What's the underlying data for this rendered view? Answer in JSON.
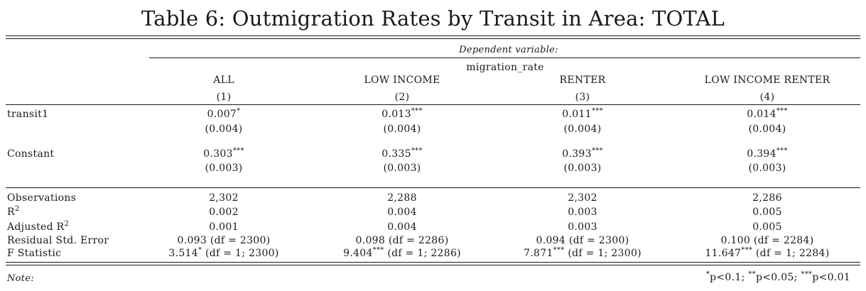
{
  "title": "Table 6: Outmigration Rates by Transit in Area: TOTAL",
  "dependent_variable_caption": "Dependent variable:",
  "dependent_variable": "migration_rate",
  "columns": [
    {
      "name": "ALL",
      "number": "(1)"
    },
    {
      "name": "LOW INCOME",
      "number": "(2)"
    },
    {
      "name": "RENTER",
      "number": "(3)"
    },
    {
      "name": "LOW INCOME RENTER",
      "number": "(4)"
    }
  ],
  "coef_rows": [
    {
      "label": "transit1",
      "cells": [
        {
          "value": "0.007",
          "stars": "*",
          "se": "(0.004)"
        },
        {
          "value": "0.013",
          "stars": "***",
          "se": "(0.004)"
        },
        {
          "value": "0.011",
          "stars": "***",
          "se": "(0.004)"
        },
        {
          "value": "0.014",
          "stars": "***",
          "se": "(0.004)"
        }
      ]
    },
    {
      "label": "Constant",
      "cells": [
        {
          "value": "0.303",
          "stars": "***",
          "se": "(0.003)"
        },
        {
          "value": "0.335",
          "stars": "***",
          "se": "(0.003)"
        },
        {
          "value": "0.393",
          "stars": "***",
          "se": "(0.003)"
        },
        {
          "value": "0.394",
          "stars": "***",
          "se": "(0.003)"
        }
      ]
    }
  ],
  "stats": {
    "observations": {
      "label": "Observations",
      "values": [
        "2,302",
        "2,288",
        "2,302",
        "2,286"
      ]
    },
    "r2": {
      "label": "R",
      "sup": "2",
      "values": [
        "0.002",
        "0.004",
        "0.003",
        "0.005"
      ]
    },
    "adj_r2": {
      "label": "Adjusted R",
      "sup": "2",
      "values": [
        "0.001",
        "0.004",
        "0.003",
        "0.005"
      ]
    },
    "rse": {
      "label": "Residual Std. Error",
      "values": [
        "0.093 (df = 2300)",
        "0.098 (df = 2286)",
        "0.094 (df = 2300)",
        "0.100 (df = 2284)"
      ]
    },
    "fstat": {
      "label": "F Statistic",
      "cells": [
        {
          "value": "3.514",
          "stars": "*",
          "df": " (df = 1; 2300)"
        },
        {
          "value": "9.404",
          "stars": "***",
          "df": " (df = 1; 2286)"
        },
        {
          "value": "7.871",
          "stars": "***",
          "df": " (df = 1; 2300)"
        },
        {
          "value": "11.647",
          "stars": "***",
          "df": " (df = 1; 2284)"
        }
      ]
    }
  },
  "note": {
    "label": "Note:",
    "sig": [
      {
        "stars": "*",
        "text": "p<0.1;"
      },
      {
        "stars": "**",
        "text": "p<0.05;"
      },
      {
        "stars": "***",
        "text": "p<0.01"
      }
    ]
  }
}
